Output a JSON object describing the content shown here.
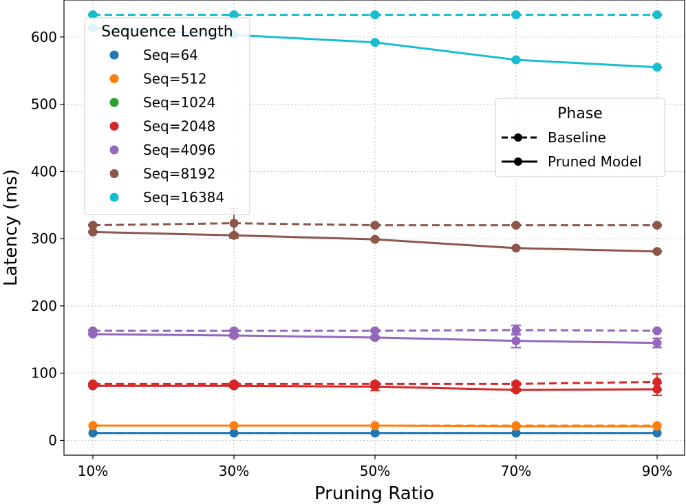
{
  "chart_data": {
    "type": "line",
    "title": "",
    "xlabel": "Pruning Ratio",
    "ylabel": "Latency (ms)",
    "categories": [
      "10%",
      "30%",
      "50%",
      "70%",
      "90%"
    ],
    "yticks": [
      0,
      100,
      200,
      300,
      400,
      500,
      600
    ],
    "ylim": [
      -22,
      655
    ],
    "grid": true,
    "legend_series": {
      "title": "Sequence Length",
      "placement": "top-left",
      "entries": [
        "Seq=64",
        "Seq=512",
        "Seq=1024",
        "Seq=2048",
        "Seq=4096",
        "Seq=8192",
        "Seq=16384"
      ]
    },
    "legend_phase": {
      "title": "Phase",
      "placement": "upper-right",
      "entries": [
        {
          "label": "Baseline",
          "style": "dashed"
        },
        {
          "label": "Pruned Model",
          "style": "solid"
        }
      ]
    },
    "series": [
      {
        "name": "Seq=64",
        "color": "#1f77b4",
        "baseline": [
          11,
          11,
          11,
          11,
          11
        ],
        "baseline_err": [
          0,
          0,
          0,
          0,
          0
        ],
        "pruned": [
          11,
          11,
          11,
          11,
          11
        ],
        "pruned_err": [
          0,
          0,
          0,
          0,
          0
        ]
      },
      {
        "name": "Seq=512",
        "color": "#ff7f0e",
        "baseline": [
          22,
          22,
          22,
          22,
          22
        ],
        "baseline_err": [
          0,
          0,
          0,
          0,
          0
        ],
        "pruned": [
          22,
          22,
          22,
          21,
          21
        ],
        "pruned_err": [
          0,
          0,
          0,
          0,
          0
        ]
      },
      {
        "name": "Seq=1024",
        "color": "#2ca02c",
        "baseline": [
          null,
          null,
          null,
          null,
          null
        ],
        "baseline_err": [
          0,
          0,
          0,
          0,
          0
        ],
        "pruned": [
          null,
          null,
          null,
          null,
          null
        ],
        "pruned_err": [
          0,
          0,
          0,
          0,
          0
        ]
      },
      {
        "name": "Seq=2048",
        "color": "#d62728",
        "baseline": [
          84,
          84,
          84,
          84,
          87
        ],
        "baseline_err": [
          1,
          2,
          2,
          2,
          12
        ],
        "pruned": [
          81,
          81,
          80,
          75,
          76
        ],
        "pruned_err": [
          1,
          2,
          6,
          2,
          9
        ]
      },
      {
        "name": "Seq=4096",
        "color": "#9467bd",
        "baseline": [
          163,
          163,
          163,
          164,
          163
        ],
        "baseline_err": [
          1,
          1,
          1,
          7,
          1
        ],
        "pruned": [
          158,
          156,
          153,
          148,
          145
        ],
        "pruned_err": [
          1,
          2,
          2,
          10,
          7
        ]
      },
      {
        "name": "Seq=8192",
        "color": "#8c564b",
        "baseline": [
          320,
          323,
          320,
          320,
          320
        ],
        "baseline_err": [
          1,
          22,
          1,
          1,
          1
        ],
        "pruned": [
          310,
          305,
          299,
          286,
          281
        ],
        "pruned_err": [
          1,
          2,
          1,
          1,
          1
        ]
      },
      {
        "name": "Seq=16384",
        "color": "#17becf",
        "baseline": [
          633,
          633,
          633,
          633,
          633
        ],
        "baseline_err": [
          1,
          1,
          1,
          1,
          1
        ],
        "pruned": [
          613,
          603,
          592,
          566,
          555
        ],
        "pruned_err": [
          1,
          1,
          1,
          1,
          1
        ]
      }
    ]
  }
}
